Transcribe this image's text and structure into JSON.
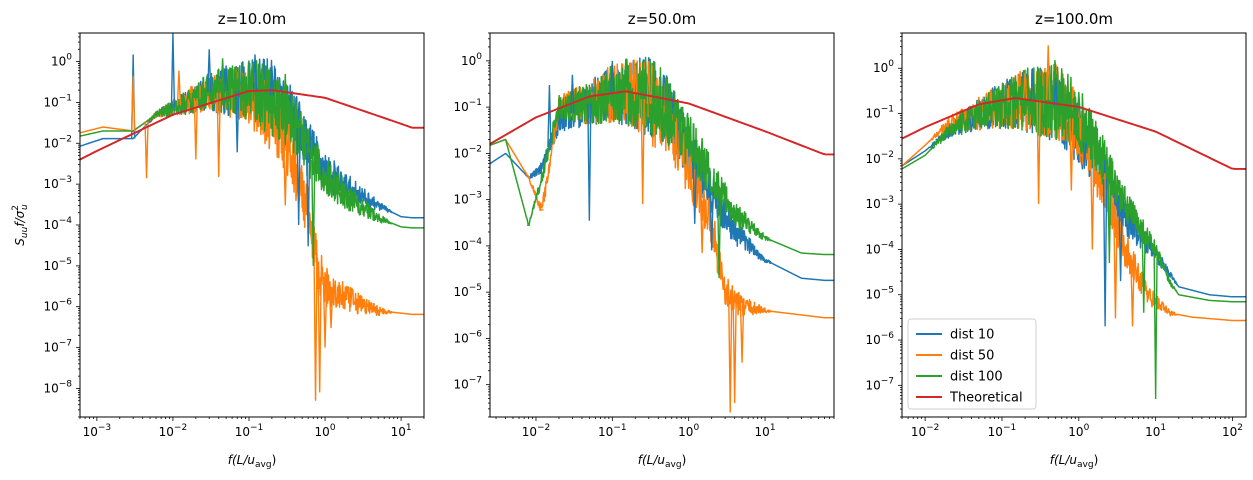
{
  "colors": {
    "dist_10": "#1f77b4",
    "dist_50": "#ff7f0e",
    "dist_100": "#2ca02c",
    "theoretical": "#d62728"
  },
  "legend": [
    "dist 10",
    "dist 50",
    "dist 100",
    "Theoretical"
  ],
  "xlabel_base": "f(L/u",
  "xlabel_sub": "avg",
  "xlabel_close": ")",
  "ylabel_base": "S",
  "ylabel_sub": "uu",
  "ylabel_mid": "f/σ",
  "ylabel_sup": "2",
  "ylabel_sub2": "u",
  "chart_data": [
    {
      "type": "line",
      "title": "z=10.0m",
      "xscale": "log",
      "yscale": "log",
      "xlim": [
        0.0006,
        20
      ],
      "ylim": [
        2e-09,
        5
      ],
      "xticks": [
        -3,
        -2,
        -1,
        0,
        1
      ],
      "yticks": [
        -8,
        -7,
        -6,
        -5,
        -4,
        -3,
        -2,
        -1,
        0
      ],
      "legend": "none",
      "grid": false,
      "series": [
        {
          "name": "dist 10",
          "color": "#1f77b4",
          "ctrl": [
            [
              0.0006,
              0.0085
            ],
            [
              0.0012,
              0.013
            ],
            [
              0.003,
              0.013
            ],
            [
              0.006,
              0.05
            ],
            [
              0.015,
              0.1
            ],
            [
              0.03,
              0.18
            ],
            [
              0.1,
              0.2
            ],
            [
              0.2,
              0.15
            ],
            [
              0.35,
              0.05
            ],
            [
              0.6,
              0.01
            ],
            [
              1,
              0.002
            ],
            [
              2,
              0.0008
            ],
            [
              5,
              0.0003
            ],
            [
              10,
              0.00016
            ],
            [
              14,
              0.00015
            ]
          ]
        },
        {
          "name": "dist 50",
          "color": "#ff7f0e",
          "ctrl": [
            [
              0.0006,
              0.018
            ],
            [
              0.0012,
              0.025
            ],
            [
              0.003,
              0.02
            ],
            [
              0.006,
              0.05
            ],
            [
              0.015,
              0.1
            ],
            [
              0.03,
              0.18
            ],
            [
              0.1,
              0.15
            ],
            [
              0.2,
              0.05
            ],
            [
              0.35,
              0.005
            ],
            [
              0.6,
              0.0002
            ],
            [
              0.8,
              1e-05
            ],
            [
              1,
              3e-06
            ],
            [
              2,
              1.5e-06
            ],
            [
              5,
              8e-07
            ],
            [
              14,
              6.5e-07
            ]
          ]
        },
        {
          "name": "dist 100",
          "color": "#2ca02c",
          "ctrl": [
            [
              0.0006,
              0.015
            ],
            [
              0.0012,
              0.02
            ],
            [
              0.003,
              0.02
            ],
            [
              0.006,
              0.05
            ],
            [
              0.015,
              0.1
            ],
            [
              0.03,
              0.2
            ],
            [
              0.1,
              0.2
            ],
            [
              0.2,
              0.12
            ],
            [
              0.35,
              0.04
            ],
            [
              0.6,
              0.006
            ],
            [
              1,
              0.0015
            ],
            [
              2,
              0.0005
            ],
            [
              5,
              0.00015
            ],
            [
              10,
              9e-05
            ],
            [
              14,
              8.5e-05
            ]
          ]
        },
        {
          "name": "Theoretical",
          "color": "#d62728",
          "ctrl": [
            [
              0.0006,
              0.004
            ],
            [
              0.001,
              0.0065
            ],
            [
              0.01,
              0.05
            ],
            [
              0.1,
              0.19
            ],
            [
              0.2,
              0.2
            ],
            [
              1,
              0.13
            ],
            [
              10,
              0.03
            ],
            [
              14,
              0.024
            ]
          ]
        }
      ],
      "features": [
        [
          0,
          0.003,
          1.5,
          "up"
        ],
        [
          0,
          0.01,
          5,
          "up"
        ],
        [
          0,
          0.03,
          2.0,
          "up"
        ],
        [
          0,
          0.05,
          0.8,
          "up"
        ],
        [
          0,
          0.2,
          0.8,
          "up"
        ],
        [
          0,
          0.12,
          1.5,
          "up"
        ],
        [
          0,
          0.07,
          0.006,
          "down"
        ],
        [
          0,
          0.45,
          0.0001,
          "down"
        ],
        [
          0,
          0.6,
          3e-05,
          "down"
        ],
        [
          1,
          0.003,
          0.45,
          "up"
        ],
        [
          1,
          0.0045,
          0.0014,
          "down"
        ],
        [
          1,
          0.012,
          0.6,
          "up"
        ],
        [
          1,
          0.02,
          0.004,
          "down"
        ],
        [
          1,
          0.04,
          0.0015,
          "down"
        ],
        [
          1,
          0.3,
          0.0003,
          "down"
        ],
        [
          1,
          0.75,
          5e-09,
          "down"
        ],
        [
          1,
          0.85,
          8e-09,
          "down"
        ],
        [
          1,
          1.0,
          1e-07,
          "down"
        ],
        [
          1,
          1.2,
          3e-07,
          "down"
        ],
        [
          2,
          0.045,
          1.2,
          "up"
        ],
        [
          2,
          0.15,
          0.9,
          "up"
        ],
        [
          2,
          0.3,
          0.5,
          "up"
        ],
        [
          2,
          0.6,
          0.01,
          "up"
        ],
        [
          2,
          0.7,
          1e-05,
          "down"
        ]
      ]
    },
    {
      "type": "line",
      "title": "z=50.0m",
      "xscale": "log",
      "yscale": "log",
      "xlim": [
        0.0025,
        80
      ],
      "ylim": [
        2e-08,
        4
      ],
      "xticks": [
        -2,
        -1,
        0,
        1
      ],
      "yticks": [
        -7,
        -6,
        -5,
        -4,
        -3,
        -2,
        -1,
        0
      ],
      "legend": "none",
      "grid": false,
      "series": [
        {
          "name": "dist 10",
          "color": "#1f77b4",
          "ctrl": [
            [
              0.0025,
              0.006
            ],
            [
              0.004,
              0.01
            ],
            [
              0.008,
              0.003
            ],
            [
              0.012,
              0.005
            ],
            [
              0.02,
              0.05
            ],
            [
              0.05,
              0.12
            ],
            [
              0.1,
              0.2
            ],
            [
              0.2,
              0.2
            ],
            [
              0.5,
              0.1
            ],
            [
              1,
              0.01
            ],
            [
              2,
              0.0015
            ],
            [
              4,
              0.0002
            ],
            [
              10,
              5e-05
            ],
            [
              30,
              2e-05
            ],
            [
              60,
              1.8e-05
            ]
          ]
        },
        {
          "name": "dist 50",
          "color": "#ff7f0e",
          "ctrl": [
            [
              0.0025,
              0.015
            ],
            [
              0.004,
              0.02
            ],
            [
              0.008,
              0.003
            ],
            [
              0.012,
              0.0006
            ],
            [
              0.02,
              0.1
            ],
            [
              0.05,
              0.12
            ],
            [
              0.1,
              0.2
            ],
            [
              0.2,
              0.2
            ],
            [
              0.5,
              0.06
            ],
            [
              1,
              0.005
            ],
            [
              2,
              0.0003
            ],
            [
              3,
              1e-05
            ],
            [
              5,
              5e-06
            ],
            [
              10,
              4e-06
            ],
            [
              60,
              2.8e-06
            ]
          ]
        },
        {
          "name": "dist 100",
          "color": "#2ca02c",
          "ctrl": [
            [
              0.0025,
              0.015
            ],
            [
              0.004,
              0.02
            ],
            [
              0.008,
              0.00028
            ],
            [
              0.012,
              0.003
            ],
            [
              0.02,
              0.1
            ],
            [
              0.05,
              0.12
            ],
            [
              0.1,
              0.2
            ],
            [
              0.2,
              0.2
            ],
            [
              0.5,
              0.1
            ],
            [
              1,
              0.02
            ],
            [
              2,
              0.003
            ],
            [
              4,
              0.0005
            ],
            [
              10,
              0.00015
            ],
            [
              30,
              7e-05
            ],
            [
              60,
              6.5e-05
            ]
          ]
        },
        {
          "name": "Theoretical",
          "color": "#d62728",
          "ctrl": [
            [
              0.0025,
              0.016
            ],
            [
              0.01,
              0.06
            ],
            [
              0.05,
              0.17
            ],
            [
              0.15,
              0.22
            ],
            [
              1,
              0.12
            ],
            [
              10,
              0.03
            ],
            [
              60,
              0.0095
            ]
          ]
        }
      ],
      "features": [
        [
          0,
          0.015,
          0.3,
          "up"
        ],
        [
          0,
          0.03,
          0.5,
          "up"
        ],
        [
          0,
          0.1,
          1.0,
          "up"
        ],
        [
          0,
          0.3,
          1.2,
          "up"
        ],
        [
          0,
          0.05,
          0.00035,
          "down"
        ],
        [
          0,
          1.2,
          0.0003,
          "down"
        ],
        [
          0,
          2.0,
          8e-05,
          "down"
        ],
        [
          1,
          0.012,
          0.0006,
          "down"
        ],
        [
          1,
          0.2,
          0.8,
          "up"
        ],
        [
          1,
          0.3,
          1.0,
          "up"
        ],
        [
          1,
          0.25,
          0.0008,
          "down"
        ],
        [
          1,
          1.5,
          7e-05,
          "down"
        ],
        [
          1,
          3.5,
          2.5e-08,
          "down"
        ],
        [
          1,
          4.0,
          4e-08,
          "down"
        ],
        [
          1,
          5.0,
          3e-07,
          "down"
        ],
        [
          2,
          0.008,
          0.00028,
          "down"
        ],
        [
          2,
          0.15,
          1.1,
          "up"
        ],
        [
          2,
          0.35,
          1.0,
          "up"
        ],
        [
          2,
          0.8,
          0.1,
          "up"
        ],
        [
          2,
          2.5,
          2e-05,
          "down"
        ]
      ]
    },
    {
      "type": "line",
      "title": "z=100.0m",
      "xscale": "log",
      "yscale": "log",
      "xlim": [
        0.005,
        150
      ],
      "ylim": [
        2e-08,
        6
      ],
      "xticks": [
        -2,
        -1,
        0,
        1,
        2
      ],
      "yticks": [
        -7,
        -6,
        -5,
        -4,
        -3,
        -2,
        -1,
        0
      ],
      "legend": "lower-left",
      "grid": false,
      "series": [
        {
          "name": "dist 10",
          "color": "#1f77b4",
          "ctrl": [
            [
              0.005,
              0.007
            ],
            [
              0.01,
              0.015
            ],
            [
              0.02,
              0.04
            ],
            [
              0.05,
              0.1
            ],
            [
              0.1,
              0.15
            ],
            [
              0.2,
              0.2
            ],
            [
              0.5,
              0.15
            ],
            [
              1,
              0.04
            ],
            [
              2,
              0.005
            ],
            [
              4,
              0.0005
            ],
            [
              10,
              8e-05
            ],
            [
              15,
              3e-05
            ],
            [
              20,
              1.5e-05
            ],
            [
              50,
              1e-05
            ],
            [
              100,
              9e-06
            ]
          ]
        },
        {
          "name": "dist 50",
          "color": "#ff7f0e",
          "ctrl": [
            [
              0.005,
              0.007
            ],
            [
              0.01,
              0.02
            ],
            [
              0.02,
              0.06
            ],
            [
              0.05,
              0.1
            ],
            [
              0.1,
              0.15
            ],
            [
              0.2,
              0.2
            ],
            [
              0.5,
              0.2
            ],
            [
              1,
              0.05
            ],
            [
              2,
              0.003
            ],
            [
              4,
              0.0001
            ],
            [
              8,
              1e-05
            ],
            [
              15,
              4e-06
            ],
            [
              30,
              3.2e-06
            ],
            [
              100,
              2.7e-06
            ]
          ]
        },
        {
          "name": "dist 100",
          "color": "#2ca02c",
          "ctrl": [
            [
              0.005,
              0.006
            ],
            [
              0.01,
              0.012
            ],
            [
              0.02,
              0.04
            ],
            [
              0.05,
              0.1
            ],
            [
              0.1,
              0.15
            ],
            [
              0.2,
              0.2
            ],
            [
              0.5,
              0.2
            ],
            [
              1,
              0.08
            ],
            [
              2,
              0.01
            ],
            [
              4,
              0.001
            ],
            [
              10,
              0.0001
            ],
            [
              15,
              2e-05
            ],
            [
              20,
              1e-05
            ],
            [
              50,
              7.5e-06
            ],
            [
              100,
              7e-06
            ]
          ]
        },
        {
          "name": "Theoretical",
          "color": "#d62728",
          "ctrl": [
            [
              0.005,
              0.028
            ],
            [
              0.01,
              0.05
            ],
            [
              0.05,
              0.16
            ],
            [
              0.15,
              0.22
            ],
            [
              1,
              0.14
            ],
            [
              10,
              0.04
            ],
            [
              100,
              0.006
            ]
          ]
        }
      ],
      "features": [
        [
          0,
          0.04,
          0.04,
          "down"
        ],
        [
          0,
          0.15,
          0.5,
          "up"
        ],
        [
          0,
          0.25,
          1.0,
          "up"
        ],
        [
          0,
          0.5,
          0.6,
          "up"
        ],
        [
          0,
          1.2,
          0.01,
          "down"
        ],
        [
          0,
          2.2,
          2e-06,
          "down"
        ],
        [
          0,
          3.5,
          2e-05,
          "down"
        ],
        [
          1,
          0.2,
          0.8,
          "up"
        ],
        [
          1,
          0.4,
          3.2,
          "up"
        ],
        [
          1,
          0.3,
          0.001,
          "down"
        ],
        [
          1,
          0.8,
          0.002,
          "down"
        ],
        [
          1,
          1.5,
          0.0001,
          "down"
        ],
        [
          1,
          3.0,
          3e-06,
          "down"
        ],
        [
          1,
          5.0,
          2e-06,
          "down"
        ],
        [
          2,
          0.15,
          0.7,
          "up"
        ],
        [
          2,
          0.3,
          1.0,
          "up"
        ],
        [
          2,
          0.6,
          1.0,
          "up"
        ],
        [
          2,
          1.0,
          0.3,
          "up"
        ],
        [
          2,
          2.5,
          5e-05,
          "down"
        ],
        [
          2,
          7.0,
          4e-06,
          "down"
        ],
        [
          2,
          10,
          5e-08,
          "down"
        ]
      ]
    }
  ]
}
